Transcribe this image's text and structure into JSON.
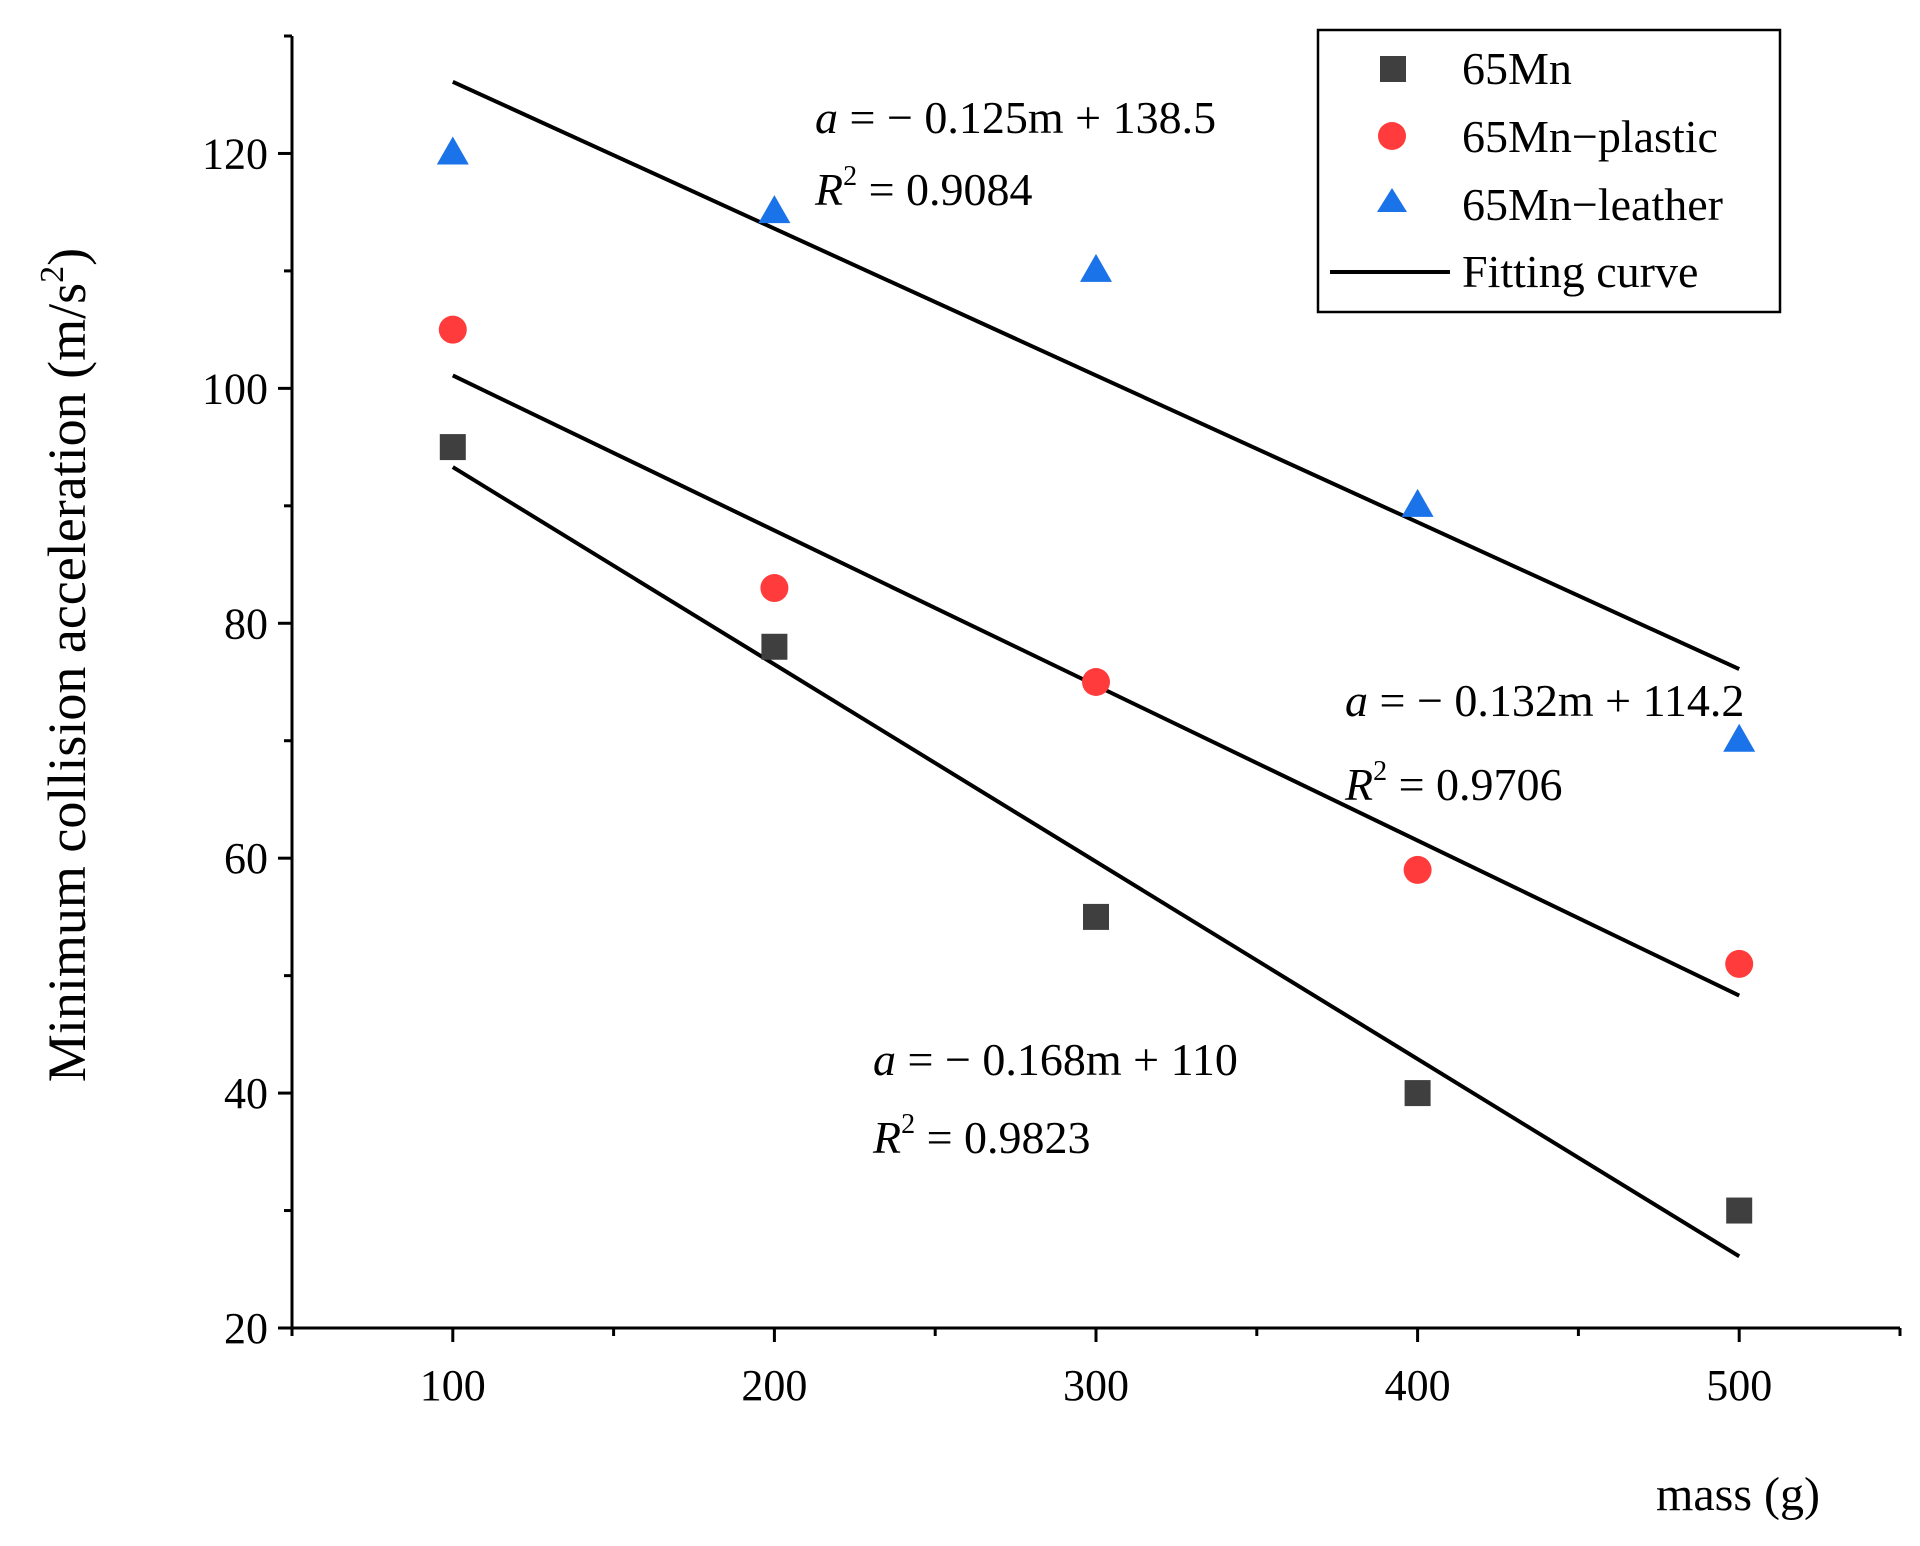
{
  "chart_data": {
    "type": "scatter",
    "xlabel": "mass (g)",
    "ylabel_main": "Minimum collision acceleration (m/s",
    "ylabel_sup": "2",
    "ylabel_close": ")",
    "xlim": [
      50,
      550
    ],
    "ylim": [
      20,
      130
    ],
    "xticks": [
      100,
      200,
      300,
      400,
      500
    ],
    "yticks": [
      20,
      40,
      60,
      80,
      100,
      120
    ],
    "series": [
      {
        "name": "65Mn",
        "marker": "square",
        "color": "#3f3f3f",
        "x": [
          100,
          200,
          300,
          400,
          500
        ],
        "y": [
          95,
          78,
          55,
          40,
          30
        ]
      },
      {
        "name": "65Mn−plastic",
        "marker": "circle",
        "color": "#ff3b3b",
        "x": [
          100,
          200,
          300,
          400,
          500
        ],
        "y": [
          105,
          83,
          75,
          59,
          51
        ]
      },
      {
        "name": "65Mn−leather",
        "marker": "triangle",
        "color": "#1a73e8",
        "x": [
          100,
          200,
          300,
          400,
          500
        ],
        "y": [
          120,
          115,
          110,
          90,
          70
        ]
      }
    ],
    "fits": [
      {
        "for": "65Mn−leather",
        "x": [
          100,
          500
        ],
        "y": [
          126.1,
          76.1
        ],
        "eq_var": "a",
        "eq_rest": " = − 0.125m + 138.5",
        "r_var": "R",
        "r_sup": "2",
        "r_rest": " = 0.9084"
      },
      {
        "for": "65Mn−plastic",
        "x": [
          100,
          500
        ],
        "y": [
          101.1,
          48.3
        ],
        "eq_var": "a",
        "eq_rest": " = − 0.132m + 114.2",
        "r_var": "R",
        "r_sup": "2",
        "r_rest": " = 0.9706"
      },
      {
        "for": "65Mn",
        "x": [
          100,
          500
        ],
        "y": [
          93.3,
          26.1
        ],
        "eq_var": "a",
        "eq_rest": " = −  0.168m + 110",
        "r_var": "R",
        "r_sup": "2",
        "r_rest": " = 0.9823"
      }
    ],
    "legend": {
      "placement": "top-right",
      "items": [
        "65Mn",
        "65Mn−plastic",
        "65Mn−leather",
        "Fitting curve"
      ]
    }
  }
}
